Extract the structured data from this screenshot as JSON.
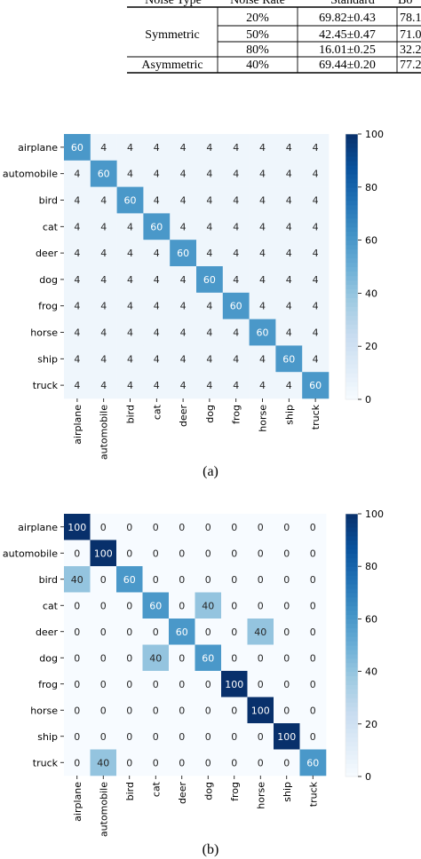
{
  "table": {
    "header": [
      "Noise Type",
      "Noise Rate",
      "Standard",
      "Bo"
    ],
    "rows": [
      {
        "type": "Symmetric",
        "rate": "20%",
        "standard": "69.82±0.43",
        "next": "78.1"
      },
      {
        "type": "",
        "rate": "50%",
        "standard": "42.45±0.47",
        "next": "71.0"
      },
      {
        "type": "",
        "rate": "80%",
        "standard": "16.01±0.25",
        "next": "32.2"
      },
      {
        "type": "Asymmetric",
        "rate": "40%",
        "standard": "69.44±0.20",
        "next": "77.2"
      }
    ]
  },
  "chart_data": [
    {
      "type": "heatmap",
      "caption": "(a)",
      "categories": [
        "airplane",
        "automobile",
        "bird",
        "cat",
        "deer",
        "dog",
        "frog",
        "horse",
        "ship",
        "truck"
      ],
      "values": [
        [
          60,
          4,
          4,
          4,
          4,
          4,
          4,
          4,
          4,
          4
        ],
        [
          4,
          60,
          4,
          4,
          4,
          4,
          4,
          4,
          4,
          4
        ],
        [
          4,
          4,
          60,
          4,
          4,
          4,
          4,
          4,
          4,
          4
        ],
        [
          4,
          4,
          4,
          60,
          4,
          4,
          4,
          4,
          4,
          4
        ],
        [
          4,
          4,
          4,
          4,
          60,
          4,
          4,
          4,
          4,
          4
        ],
        [
          4,
          4,
          4,
          4,
          4,
          60,
          4,
          4,
          4,
          4
        ],
        [
          4,
          4,
          4,
          4,
          4,
          4,
          60,
          4,
          4,
          4
        ],
        [
          4,
          4,
          4,
          4,
          4,
          4,
          4,
          60,
          4,
          4
        ],
        [
          4,
          4,
          4,
          4,
          4,
          4,
          4,
          4,
          60,
          4
        ],
        [
          4,
          4,
          4,
          4,
          4,
          4,
          4,
          4,
          4,
          60
        ]
      ],
      "colorbar": {
        "min": 0,
        "max": 100,
        "ticks": [
          0,
          20,
          40,
          60,
          80,
          100
        ]
      },
      "colormap": [
        "#f7fbff",
        "#deebf7",
        "#c6dbef",
        "#9ecae1",
        "#6baed6",
        "#4292c6",
        "#2171b5",
        "#08519c",
        "#08306b"
      ]
    },
    {
      "type": "heatmap",
      "caption": "(b)",
      "categories": [
        "airplane",
        "automobile",
        "bird",
        "cat",
        "deer",
        "dog",
        "frog",
        "horse",
        "ship",
        "truck"
      ],
      "values": [
        [
          100,
          0,
          0,
          0,
          0,
          0,
          0,
          0,
          0,
          0
        ],
        [
          0,
          100,
          0,
          0,
          0,
          0,
          0,
          0,
          0,
          0
        ],
        [
          40,
          0,
          60,
          0,
          0,
          0,
          0,
          0,
          0,
          0
        ],
        [
          0,
          0,
          0,
          60,
          0,
          40,
          0,
          0,
          0,
          0
        ],
        [
          0,
          0,
          0,
          0,
          60,
          0,
          0,
          40,
          0,
          0
        ],
        [
          0,
          0,
          0,
          40,
          0,
          60,
          0,
          0,
          0,
          0
        ],
        [
          0,
          0,
          0,
          0,
          0,
          0,
          100,
          0,
          0,
          0
        ],
        [
          0,
          0,
          0,
          0,
          0,
          0,
          0,
          100,
          0,
          0
        ],
        [
          0,
          0,
          0,
          0,
          0,
          0,
          0,
          0,
          100,
          0
        ],
        [
          0,
          40,
          0,
          0,
          0,
          0,
          0,
          0,
          0,
          60
        ]
      ],
      "colorbar": {
        "min": 0,
        "max": 100,
        "ticks": [
          0,
          20,
          40,
          60,
          80,
          100
        ]
      },
      "colormap": [
        "#f7fbff",
        "#deebf7",
        "#c6dbef",
        "#9ecae1",
        "#6baed6",
        "#4292c6",
        "#2171b5",
        "#08519c",
        "#08306b"
      ]
    }
  ]
}
